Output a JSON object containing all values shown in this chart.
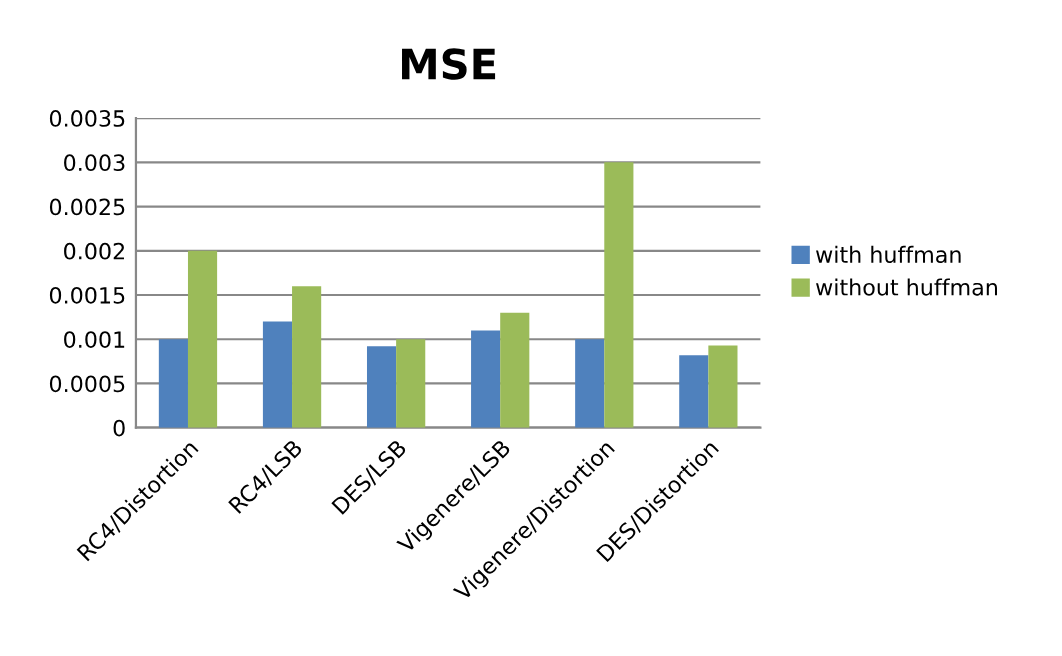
{
  "chart_data": {
    "type": "bar",
    "title": "MSE",
    "categories": [
      "RC4/Distortion",
      "RC4/LSB",
      "DES/LSB",
      "Vigenere/LSB",
      "Vigenere/Distortion",
      "DES/Distortion"
    ],
    "series": [
      {
        "name": "with huffman",
        "color": "#4f81bd",
        "values": [
          0.001,
          0.0012,
          0.00092,
          0.0011,
          0.001,
          0.00082
        ]
      },
      {
        "name": "without huffman",
        "color": "#9bbb59",
        "values": [
          0.002,
          0.0016,
          0.001,
          0.0013,
          0.003,
          0.00093
        ]
      }
    ],
    "ylim": [
      0,
      0.0035
    ],
    "yticks": [
      0,
      0.0005,
      0.001,
      0.0015,
      0.002,
      0.0025,
      0.003,
      0.0035
    ],
    "grid": "y",
    "legend": "right"
  }
}
